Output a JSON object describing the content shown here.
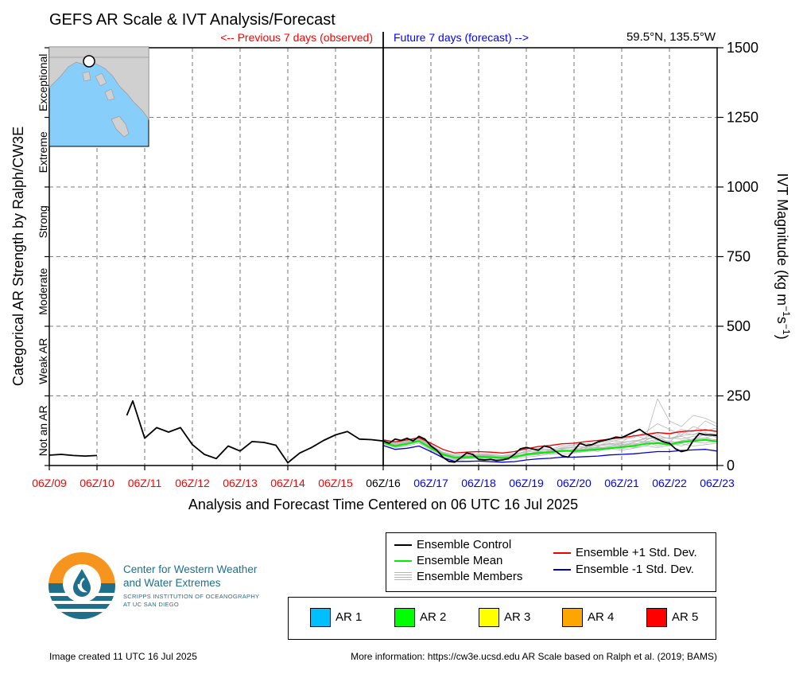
{
  "chart_data": {
    "type": "line",
    "title": "GEFS AR Scale & IVT Analysis/Forecast",
    "location": "59.5°N, 135.5°W",
    "previous_label": "<-- Previous 7 days (observed)",
    "future_label": "Future 7 days (forecast) -->",
    "xlabel": "Analysis and Forecast Time Centered on 06 UTC 16 Jul 2025",
    "ylabel_left": "Categorical AR Strength by Ralph/CW3E",
    "ylabel_right_parts": [
      "IVT Magnitude (kg m",
      "−1",
      "s",
      "−1",
      ")"
    ],
    "x_ticks": [
      "06Z/09",
      "06Z/10",
      "06Z/11",
      "06Z/12",
      "06Z/13",
      "06Z/14",
      "06Z/15",
      "06Z/16",
      "06Z/17",
      "06Z/18",
      "06Z/19",
      "06Z/20",
      "06Z/21",
      "06Z/22",
      "06Z/23"
    ],
    "xlim": [
      0,
      14
    ],
    "ylim": [
      0,
      1500
    ],
    "y_ticks": [
      0,
      250,
      500,
      750,
      1000,
      1250,
      1500
    ],
    "grid": true,
    "categories_left": [
      "Not an AR",
      "Weak AR",
      "Moderate",
      "Strong",
      "Extreme",
      "Exceptional"
    ],
    "series": [
      {
        "name": "Ensemble Control",
        "color": "#000000",
        "segments": [
          {
            "x": [
              0,
              0.25,
              0.5,
              0.75,
              1.0
            ],
            "y": [
              37,
              40,
              36,
              34,
              36
            ]
          },
          {
            "x": [
              1.625,
              1.75,
              2.0,
              2.25,
              2.5,
              2.75,
              3.0,
              3.25,
              3.5,
              3.75,
              4.0,
              4.25,
              4.5,
              4.75,
              5.0,
              5.25,
              5.5,
              5.75,
              6.0,
              6.25,
              6.5,
              6.75,
              7.0
            ],
            "y": [
              180,
              232,
              98,
              136,
              120,
              136,
              75,
              40,
              25,
              70,
              52,
              86,
              83,
              73,
              10,
              45,
              65,
              90,
              110,
              122,
              95,
              93,
              88
            ]
          },
          {
            "x": [
              7.0,
              7.125,
              7.25,
              7.375,
              7.5,
              7.625,
              7.75,
              7.875,
              8.0,
              8.125,
              8.25,
              8.375,
              8.5,
              8.625,
              8.75,
              8.875,
              9.0,
              9.125,
              9.25,
              9.375,
              9.5,
              9.625,
              9.75,
              9.875,
              10.0,
              10.125,
              10.25,
              10.375,
              10.5,
              10.625,
              10.75,
              10.875,
              11.0,
              11.125,
              11.25,
              11.375,
              11.5,
              11.625,
              11.75,
              11.875,
              12.0,
              12.125,
              12.25,
              12.375,
              12.5,
              12.625,
              12.75,
              12.875,
              13.0,
              13.125,
              13.25,
              13.375,
              13.5,
              13.625,
              13.75,
              13.875,
              14.0
            ],
            "y": [
              88,
              80,
              95,
              90,
              98,
              88,
              105,
              95,
              70,
              55,
              30,
              15,
              12,
              28,
              45,
              40,
              22,
              20,
              22,
              18,
              20,
              25,
              40,
              60,
              65,
              60,
              55,
              70,
              65,
              50,
              35,
              30,
              55,
              80,
              72,
              75,
              85,
              90,
              95,
              102,
              100,
              110,
              120,
              130,
              115,
              105,
              95,
              85,
              80,
              60,
              50,
              55,
              90,
              115,
              110,
              110,
              108
            ]
          }
        ]
      },
      {
        "name": "Ensemble Mean",
        "color": "#00ee00",
        "x": [
          7.0,
          7.25,
          7.5,
          7.75,
          8.0,
          8.25,
          8.5,
          8.75,
          9.0,
          9.25,
          9.5,
          9.75,
          10.0,
          10.25,
          10.5,
          10.75,
          11.0,
          11.25,
          11.5,
          11.75,
          12.0,
          12.25,
          12.5,
          12.75,
          13.0,
          13.25,
          13.5,
          13.75,
          14.0
        ],
        "y": [
          82,
          70,
          78,
          88,
          62,
          40,
          28,
          30,
          32,
          30,
          27,
          30,
          40,
          45,
          48,
          52,
          52,
          55,
          58,
          62,
          66,
          70,
          78,
          80,
          76,
          84,
          88,
          92,
          86
        ]
      },
      {
        "name": "Ensemble +1 Std. Dev.",
        "color": "#ee0000",
        "x": [
          7.0,
          7.25,
          7.5,
          7.75,
          8.0,
          8.25,
          8.5,
          8.75,
          9.0,
          9.25,
          9.5,
          9.75,
          10.0,
          10.25,
          10.5,
          10.75,
          11.0,
          11.25,
          11.5,
          11.75,
          12.0,
          12.25,
          12.5,
          12.75,
          13.0,
          13.25,
          13.5,
          13.75,
          14.0
        ],
        "y": [
          92,
          85,
          92,
          100,
          80,
          58,
          45,
          48,
          50,
          48,
          45,
          50,
          60,
          68,
          72,
          78,
          80,
          86,
          90,
          95,
          100,
          106,
          112,
          118,
          115,
          122,
          125,
          128,
          122
        ]
      },
      {
        "name": "Ensemble -1 Std. Dev.",
        "color": "#0000cc",
        "x": [
          7.0,
          7.25,
          7.5,
          7.75,
          8.0,
          8.25,
          8.5,
          8.75,
          9.0,
          9.25,
          9.5,
          9.75,
          10.0,
          10.25,
          10.5,
          10.75,
          11.0,
          11.25,
          11.5,
          11.75,
          12.0,
          12.25,
          12.5,
          12.75,
          13.0,
          13.25,
          13.5,
          13.75,
          14.0
        ],
        "y": [
          72,
          58,
          62,
          70,
          50,
          28,
          15,
          15,
          16,
          14,
          12,
          14,
          20,
          24,
          26,
          30,
          30,
          32,
          34,
          38,
          40,
          42,
          46,
          50,
          50,
          54,
          56,
          58,
          52
        ]
      },
      {
        "name": "Ensemble Members",
        "color": "#b8b8b8",
        "x": [
          7.0,
          7.25,
          7.5,
          7.75,
          8.0,
          8.25,
          8.5,
          8.75,
          9.0,
          9.25,
          9.5,
          9.75,
          10.0,
          10.25,
          10.5,
          10.75,
          11.0,
          11.25,
          11.5,
          11.75,
          12.0,
          12.25,
          12.5,
          12.75,
          13.0,
          13.25,
          13.5,
          13.75,
          14.0
        ],
        "members": [
          [
            86,
            78,
            85,
            95,
            72,
            45,
            32,
            35,
            40,
            38,
            30,
            35,
            55,
            60,
            52,
            65,
            70,
            62,
            80,
            90,
            85,
            110,
            95,
            100,
            85,
            120,
            110,
            130,
            125
          ],
          [
            84,
            72,
            80,
            92,
            65,
            38,
            25,
            28,
            30,
            28,
            25,
            30,
            35,
            40,
            45,
            55,
            48,
            52,
            60,
            58,
            72,
            65,
            70,
            85,
            70,
            90,
            95,
            100,
            90
          ],
          [
            80,
            66,
            74,
            84,
            58,
            35,
            22,
            26,
            28,
            26,
            24,
            28,
            45,
            38,
            55,
            48,
            60,
            58,
            50,
            65,
            60,
            75,
            88,
            70,
            80,
            70,
            85,
            80,
            95
          ],
          [
            88,
            74,
            82,
            94,
            70,
            42,
            35,
            32,
            36,
            34,
            30,
            32,
            38,
            50,
            40,
            58,
            55,
            66,
            62,
            70,
            78,
            72,
            90,
            110,
            95,
            105,
            90,
            115,
            100
          ],
          [
            78,
            64,
            70,
            80,
            55,
            30,
            20,
            24,
            26,
            22,
            20,
            24,
            30,
            35,
            42,
            40,
            45,
            50,
            55,
            60,
            55,
            62,
            70,
            65,
            72,
            78,
            70,
            75,
            80
          ],
          [
            90,
            82,
            88,
            98,
            75,
            48,
            38,
            40,
            44,
            40,
            36,
            42,
            50,
            62,
            58,
            70,
            75,
            80,
            72,
            85,
            95,
            100,
            120,
            150,
            130,
            110,
            140,
            125,
            135
          ],
          [
            85,
            76,
            84,
            90,
            68,
            40,
            28,
            30,
            34,
            32,
            28,
            34,
            42,
            48,
            52,
            50,
            58,
            64,
            70,
            75,
            80,
            90,
            85,
            95,
            100,
            95,
            105,
            110,
            105
          ],
          [
            82,
            70,
            78,
            86,
            62,
            36,
            26,
            28,
            30,
            30,
            26,
            28,
            36,
            42,
            46,
            54,
            52,
            60,
            66,
            62,
            70,
            78,
            82,
            90,
            88,
            80,
            95,
            100,
            110
          ],
          [
            83,
            68,
            76,
            88,
            60,
            40,
            30,
            30,
            32,
            36,
            30,
            30,
            44,
            46,
            50,
            56,
            50,
            58,
            64,
            68,
            74,
            84,
            96,
            240,
            160,
            140,
            180,
            170,
            150
          ],
          [
            87,
            74,
            80,
            90,
            66,
            44,
            30,
            34,
            38,
            34,
            32,
            36,
            40,
            52,
            48,
            60,
            64,
            56,
            68,
            80,
            70,
            82,
            100,
            120,
            110,
            130,
            120,
            160,
            140
          ],
          [
            81,
            70,
            77,
            87,
            63,
            37,
            27,
            29,
            31,
            29,
            27,
            31,
            41,
            45,
            49,
            53,
            55,
            57,
            61,
            65,
            69,
            73,
            79,
            85,
            82,
            88,
            92,
            96,
            92
          ],
          [
            89,
            78,
            86,
            96,
            74,
            46,
            34,
            36,
            38,
            36,
            34,
            38,
            48,
            54,
            56,
            62,
            66,
            68,
            74,
            78,
            84,
            88,
            96,
            104,
            98,
            108,
            112,
            118,
            112
          ]
        ]
      }
    ]
  },
  "legend": {
    "control": "Ensemble Control",
    "mean": "Ensemble Mean",
    "members": "Ensemble Members",
    "plus_std": "Ensemble +1 Std. Dev.",
    "minus_std": "Ensemble -1 Std. Dev."
  },
  "ar_scale": [
    {
      "label": "AR 1",
      "color": "#00bfff"
    },
    {
      "label": "AR 2",
      "color": "#00ff00"
    },
    {
      "label": "AR 3",
      "color": "#ffff00"
    },
    {
      "label": "AR 4",
      "color": "#ffa500"
    },
    {
      "label": "AR 5",
      "color": "#ff0000"
    }
  ],
  "organization": {
    "name_line1": "Center for Western Weather",
    "name_line2": "and Water Extremes",
    "sub_line1": "SCRIPPS INSTITUTION OF OCEANOGRAPHY",
    "sub_line2": "AT UC SAN DIEGO"
  },
  "footer": {
    "created": "Image created 11 UTC 16 Jul 2025",
    "more_info": "More information: https://cw3e.ucsd.edu AR Scale based on Ralph et al. (2019; BAMS)"
  },
  "colors": {
    "observed_tick": "#ff0000",
    "forecast_tick": "#0000ff",
    "present_tick": "#000000",
    "logo_orange": "#f7941d",
    "logo_blue": "#1f6f8b",
    "map_ocean": "#87cefa"
  }
}
